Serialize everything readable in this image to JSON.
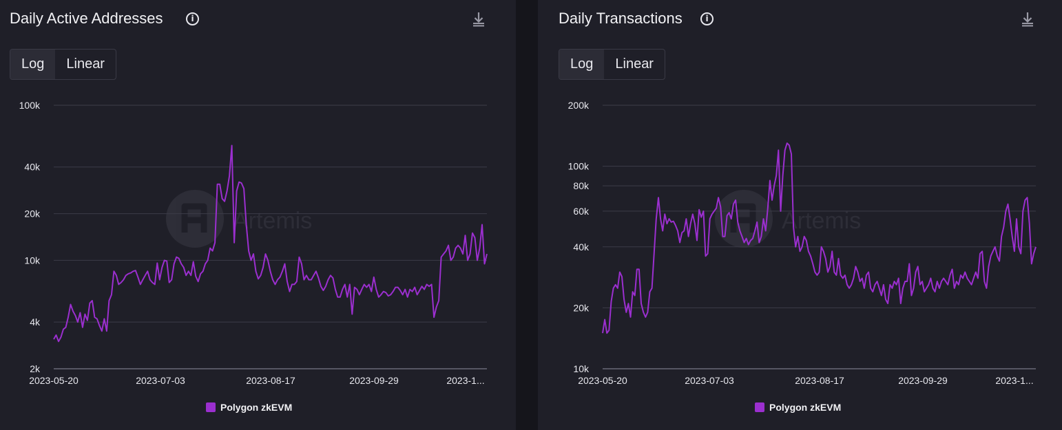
{
  "panels": [
    {
      "title": "Daily Active Addresses"
    },
    {
      "title": "Daily Transactions"
    }
  ],
  "scale_toggle": [
    "Log",
    "Linear"
  ],
  "selected_scale": "Log",
  "icons": {
    "info": "info-icon",
    "download": "download-icon"
  },
  "watermark": "Artemis",
  "colors": {
    "series": "#9b2fcf",
    "background": "#1f1f28",
    "grid": "#3c3c48",
    "text": "#e8e8ee"
  },
  "chart_data": [
    {
      "type": "line",
      "title": "Daily Active Addresses",
      "y_scale": "log",
      "ylim": [
        2000,
        100000
      ],
      "y_ticks": [
        2000,
        4000,
        10000,
        20000,
        40000,
        100000
      ],
      "y_tick_labels": [
        "2k",
        "4k",
        "10k",
        "20k",
        "40k",
        "100k"
      ],
      "x_tick_labels": [
        "2023-05-20",
        "2023-07-03",
        "2023-08-17",
        "2023-09-29",
        "2023-1..."
      ],
      "legend": [
        "Polygon zkEVM"
      ],
      "legend_position": "bottom-center",
      "grid": true,
      "series": [
        {
          "name": "Polygon zkEVM",
          "values": [
            3100,
            3300,
            3000,
            3200,
            3600,
            3700,
            4300,
            5200,
            4700,
            4400,
            4000,
            4600,
            3700,
            4500,
            4100,
            5300,
            5500,
            4300,
            4200,
            3800,
            3500,
            4200,
            3500,
            5500,
            6000,
            8500,
            8000,
            7000,
            7200,
            7500,
            8000,
            8200,
            8300,
            8500,
            8600,
            7800,
            7000,
            7500,
            8000,
            8500,
            7500,
            7200,
            7000,
            9600,
            7500,
            9000,
            10000,
            9900,
            7200,
            7500,
            9500,
            10500,
            10300,
            9500,
            9000,
            8000,
            8500,
            8000,
            9800,
            7900,
            7300,
            8200,
            8500,
            9500,
            10000,
            12000,
            11500,
            13000,
            31000,
            31000,
            25000,
            24000,
            28000,
            35000,
            55000,
            13000,
            28000,
            32000,
            31500,
            29000,
            17000,
            11500,
            10000,
            11000,
            8500,
            7600,
            8000,
            9000,
            11000,
            10000,
            8500,
            7500,
            7000,
            7500,
            7800,
            8500,
            9500,
            7300,
            6300,
            7000,
            7000,
            7300,
            10500,
            9500,
            7500,
            8000,
            7500,
            7500,
            8000,
            8500,
            7700,
            6800,
            6400,
            6800,
            7500,
            8000,
            7700,
            6500,
            5800,
            5800,
            6500,
            7000,
            5800,
            7000,
            4500,
            6700,
            6500,
            6000,
            6500,
            7000,
            6700,
            7000,
            6300,
            7800,
            6500,
            5800,
            6000,
            6300,
            6200,
            5900,
            6000,
            6300,
            6700,
            6700,
            6400,
            6000,
            6500,
            5800,
            6500,
            6300,
            6700,
            6000,
            6400,
            6800,
            6500,
            7000,
            6800,
            7000,
            4300,
            5000,
            5500,
            10500,
            11000,
            11500,
            12500,
            10000,
            10500,
            12000,
            12500,
            12000,
            11000,
            14500,
            10000,
            11000,
            15000,
            14000,
            10000,
            12000,
            17000,
            9500,
            11000
          ]
        }
      ]
    },
    {
      "type": "line",
      "title": "Daily Transactions",
      "y_scale": "log",
      "ylim": [
        10000,
        200000
      ],
      "y_ticks": [
        10000,
        20000,
        40000,
        60000,
        80000,
        100000,
        200000
      ],
      "y_tick_labels": [
        "10k",
        "20k",
        "40k",
        "60k",
        "80k",
        "100k",
        "200k"
      ],
      "x_tick_labels": [
        "2023-05-20",
        "2023-07-03",
        "2023-08-17",
        "2023-09-29",
        "2023-1..."
      ],
      "legend": [
        "Polygon zkEVM"
      ],
      "legend_position": "bottom-center",
      "grid": true,
      "series": [
        {
          "name": "Polygon zkEVM",
          "values": [
            15000,
            17500,
            15000,
            15500,
            21500,
            25000,
            26000,
            25000,
            30000,
            28500,
            22000,
            19000,
            21000,
            18000,
            24000,
            23000,
            31000,
            31000,
            21000,
            19000,
            18000,
            19000,
            24000,
            25000,
            37000,
            55000,
            70000,
            55000,
            48000,
            58000,
            52000,
            55000,
            53000,
            53500,
            51000,
            48000,
            42000,
            47000,
            48000,
            55000,
            45000,
            52000,
            58000,
            52000,
            43000,
            61000,
            56000,
            60000,
            36000,
            37000,
            55000,
            58000,
            60000,
            62000,
            70000,
            63000,
            45000,
            45000,
            57000,
            59000,
            55000,
            65000,
            68000,
            53000,
            48000,
            45000,
            42000,
            44000,
            41000,
            43000,
            44000,
            48000,
            53000,
            42000,
            45000,
            55000,
            48000,
            62000,
            85000,
            68000,
            80000,
            90000,
            120000,
            60000,
            90000,
            120000,
            130000,
            127000,
            115000,
            50000,
            40000,
            45000,
            38000,
            40000,
            45000,
            43000,
            38000,
            36000,
            33000,
            30000,
            29000,
            30000,
            40000,
            38000,
            35000,
            30000,
            32000,
            38000,
            30000,
            29000,
            35000,
            29000,
            28000,
            29000,
            26000,
            25000,
            26000,
            28000,
            32000,
            30000,
            27000,
            28000,
            25000,
            29000,
            30000,
            25000,
            24000,
            26000,
            27000,
            25000,
            23000,
            26000,
            22000,
            21000,
            26000,
            25000,
            27000,
            26000,
            28000,
            21000,
            25000,
            27000,
            27000,
            33000,
            23000,
            25000,
            30000,
            32000,
            26000,
            27000,
            24000,
            25000,
            26000,
            28000,
            25000,
            24000,
            27000,
            25000,
            27000,
            28000,
            27000,
            26000,
            29000,
            31000,
            25000,
            27000,
            26000,
            29000,
            28000,
            30000,
            28000,
            27000,
            26000,
            28000,
            30000,
            28000,
            37000,
            38000,
            27000,
            25000,
            32000,
            36000,
            38000,
            40000,
            36000,
            34000,
            45000,
            50000,
            60000,
            65000,
            55000,
            45000,
            38000,
            55000,
            40000,
            37000,
            60000,
            68000,
            70000,
            52000,
            33000,
            37000,
            40000
          ]
        }
      ]
    }
  ]
}
